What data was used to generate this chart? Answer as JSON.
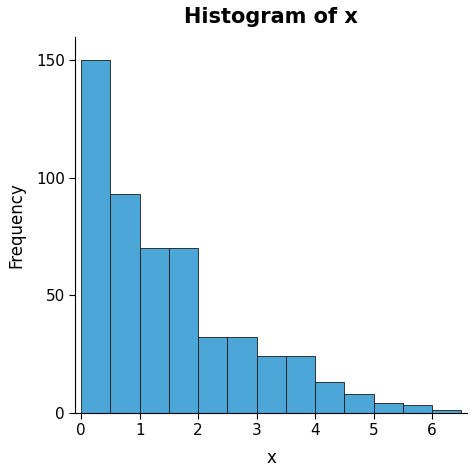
{
  "title": "Histogram of x",
  "xlabel": "x",
  "ylabel": "Frequency",
  "bar_color": "#4da6d8",
  "bar_edge_color": "#1a1a1a",
  "bar_edge_width": 0.6,
  "bin_edges": [
    0.0,
    0.5,
    1.0,
    1.5,
    2.0,
    2.5,
    3.0,
    3.5,
    4.0,
    4.5,
    5.0,
    5.5,
    6.0,
    6.5
  ],
  "frequencies": [
    150,
    93,
    70,
    70,
    32,
    32,
    24,
    24,
    13,
    8,
    4,
    3,
    1
  ],
  "xlim": [
    -0.1,
    6.6
  ],
  "ylim": [
    0,
    160
  ],
  "yticks": [
    0,
    50,
    100,
    150
  ],
  "xticks": [
    0,
    1,
    2,
    3,
    4,
    5,
    6
  ],
  "background_color": "#ffffff",
  "title_fontsize": 15,
  "title_fontweight": "bold",
  "axis_label_fontsize": 12
}
